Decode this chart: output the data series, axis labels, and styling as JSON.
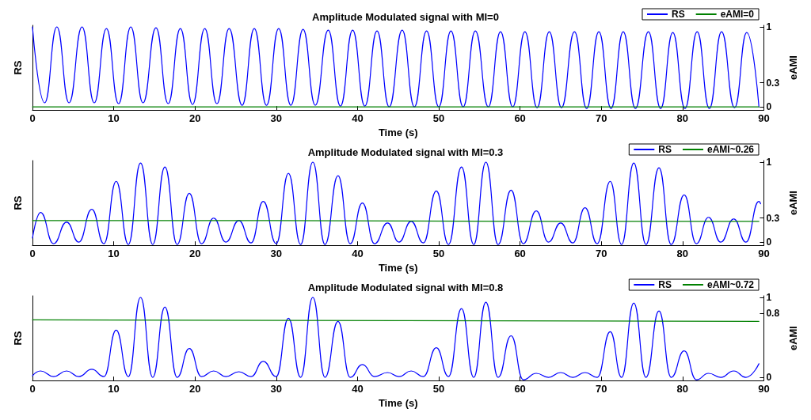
{
  "chart_data": [
    {
      "type": "line",
      "title": "Amplitude Modulated signal with MI=0",
      "xlabel": "Time (s)",
      "ylabel": "RS",
      "y2label": "eAMI",
      "xlim": [
        0,
        90
      ],
      "xticks": [
        0,
        10,
        20,
        30,
        40,
        50,
        60,
        70,
        80,
        90
      ],
      "y2lim": [
        -0.04,
        1.02
      ],
      "y2ticks": [
        0,
        0.3,
        1
      ],
      "legend": "top right",
      "grid": false,
      "series": [
        {
          "name": "RS",
          "color": "#0000ff",
          "axis": "y2",
          "x": [
            0,
            1.5,
            3.0,
            4.5,
            6.1,
            7.6,
            9.1,
            10.6,
            12.1,
            13.6,
            15.2,
            16.7,
            18.2,
            19.7,
            21.2,
            22.7,
            24.2,
            25.8,
            27.3,
            28.8,
            30.3,
            31.8,
            33.3,
            34.8,
            36.4,
            37.9,
            39.4,
            40.9,
            42.4,
            43.9,
            45.5,
            47.0,
            48.5,
            50.0,
            51.5,
            53.0,
            54.5,
            56.1,
            57.6,
            59.1,
            60.6,
            62.1,
            63.6,
            65.1,
            66.7,
            68.2,
            69.7,
            71.2,
            72.7,
            74.2,
            75.8,
            77.3,
            78.8,
            80.3,
            81.8,
            83.3,
            84.8,
            86.4,
            87.9,
            89.4
          ],
          "values": [
            1,
            0.05,
            1,
            0.05,
            1,
            0.05,
            0.98,
            0.04,
            1,
            0.05,
            0.99,
            0.04,
            0.98,
            0.03,
            0.98,
            0.04,
            0.98,
            0.02,
            0.98,
            0.02,
            0.98,
            0.02,
            0.97,
            0.02,
            0.96,
            0.01,
            0.96,
            0.01,
            0.95,
            0,
            0.96,
            0,
            0.95,
            0,
            0.95,
            0,
            0.95,
            0,
            0.94,
            0,
            0.94,
            -0.01,
            0.94,
            -0.01,
            0.94,
            -0.02,
            0.94,
            -0.02,
            0.94,
            -0.02,
            0.94,
            -0.02,
            0.93,
            -0.02,
            0.94,
            -0.02,
            0.94,
            -0.01,
            0.93,
            0
          ]
        },
        {
          "name": "eAMI=0",
          "color": "#008000",
          "axis": "y2",
          "x": [
            0,
            89.4
          ],
          "values": [
            0,
            0
          ]
        }
      ]
    },
    {
      "type": "line",
      "title": "Amplitude Modulated signal with MI=0.3",
      "xlabel": "Time (s)",
      "ylabel": "RS",
      "y2label": "eAMI",
      "xlim": [
        0,
        90
      ],
      "xticks": [
        0,
        10,
        20,
        30,
        40,
        50,
        60,
        70,
        80,
        90
      ],
      "y2lim": [
        -0.04,
        1.02
      ],
      "y2ticks": [
        0,
        0.3,
        1
      ],
      "legend": "top right",
      "grid": false,
      "series": [
        {
          "name": "RS",
          "color": "#0000ff",
          "axis": "y2",
          "x": [
            0,
            1.0,
            2.6,
            4.2,
            5.7,
            7.3,
            8.8,
            10.3,
            11.8,
            13.3,
            14.8,
            16.3,
            17.8,
            19.3,
            20.8,
            22.3,
            23.8,
            25.4,
            26.9,
            28.4,
            30.0,
            31.5,
            33.0,
            34.5,
            36.0,
            37.6,
            39.1,
            40.6,
            42.1,
            43.7,
            45.1,
            46.6,
            48.1,
            49.7,
            51.2,
            52.8,
            54.3,
            55.8,
            57.3,
            58.9,
            60.4,
            62.0,
            63.5,
            65.0,
            66.5,
            68.0,
            69.5,
            71.1,
            72.5,
            74.0,
            75.5,
            77.1,
            78.6,
            80.2,
            81.7,
            83.2,
            84.7,
            86.3,
            87.8,
            89.4,
            89.6
          ],
          "values": [
            0.05,
            0.37,
            -0.02,
            0.25,
            0.0,
            0.41,
            -0.02,
            0.76,
            -0.03,
            0.99,
            -0.03,
            0.94,
            -0.03,
            0.61,
            -0.02,
            0.3,
            0.0,
            0.27,
            -0.01,
            0.51,
            -0.02,
            0.86,
            -0.03,
            1.0,
            -0.03,
            0.83,
            -0.02,
            0.49,
            -0.02,
            0.24,
            0.0,
            0.26,
            -0.01,
            0.64,
            -0.03,
            0.94,
            -0.03,
            1.0,
            -0.03,
            0.65,
            -0.02,
            0.39,
            0.0,
            0.24,
            -0.01,
            0.43,
            -0.02,
            0.76,
            -0.03,
            0.99,
            -0.03,
            0.93,
            -0.03,
            0.59,
            -0.02,
            0.31,
            0.0,
            0.29,
            0.0,
            0.51,
            0.48
          ]
        },
        {
          "name": "eAMI~0.26",
          "color": "#008000",
          "axis": "y2",
          "x": [
            0,
            30,
            60,
            89.4
          ],
          "values": [
            0.27,
            0.27,
            0.26,
            0.26
          ]
        }
      ]
    },
    {
      "type": "line",
      "title": "Amplitude Modulated signal with MI=0.8",
      "xlabel": "Time (s)",
      "ylabel": "RS",
      "y2label": "eAMI",
      "xlim": [
        0,
        90
      ],
      "xticks": [
        0,
        10,
        20,
        30,
        40,
        50,
        60,
        70,
        80,
        90
      ],
      "y2lim": [
        -0.04,
        1.02
      ],
      "y2ticks": [
        0,
        0.8,
        1
      ],
      "legend": "top right",
      "grid": false,
      "series": [
        {
          "name": "RS",
          "color": "#0000ff",
          "axis": "y2",
          "x": [
            0,
            1.0,
            2.6,
            4.2,
            5.7,
            7.3,
            8.8,
            10.3,
            11.8,
            13.3,
            14.8,
            16.3,
            17.8,
            19.3,
            20.8,
            22.3,
            23.8,
            25.4,
            26.9,
            28.4,
            30.0,
            31.5,
            33.0,
            34.5,
            36.0,
            37.6,
            39.1,
            40.6,
            42.1,
            43.7,
            45.1,
            46.6,
            48.1,
            49.7,
            51.2,
            52.8,
            54.3,
            55.8,
            57.3,
            58.9,
            60.4,
            62.0,
            63.5,
            65.0,
            66.5,
            68.0,
            69.5,
            71.1,
            72.5,
            74.0,
            75.5,
            77.1,
            78.6,
            80.2,
            81.7,
            83.2,
            84.7,
            86.3,
            87.8,
            89.4
          ],
          "values": [
            0.02,
            0.08,
            0.01,
            0.08,
            0.01,
            0.1,
            0.01,
            0.59,
            0.01,
            1.0,
            0.0,
            0.88,
            0.0,
            0.36,
            0.01,
            0.08,
            0.01,
            0.07,
            0.01,
            0.2,
            0.01,
            0.74,
            0.0,
            1.0,
            0.0,
            0.7,
            0.0,
            0.16,
            0.01,
            0.06,
            0.01,
            0.08,
            0.01,
            0.37,
            0.01,
            0.86,
            0.0,
            0.94,
            0.0,
            0.52,
            -0.03,
            0.05,
            0.0,
            0.06,
            0.0,
            0.06,
            0.0,
            0.57,
            0.0,
            0.93,
            0.0,
            0.83,
            0.0,
            0.33,
            -0.03,
            0.05,
            0.0,
            0.08,
            0.0,
            0.17
          ]
        },
        {
          "name": "eAMI~0.72",
          "color": "#008000",
          "axis": "y2",
          "x": [
            0,
            45,
            89.4
          ],
          "values": [
            0.72,
            0.71,
            0.7
          ]
        }
      ]
    }
  ]
}
